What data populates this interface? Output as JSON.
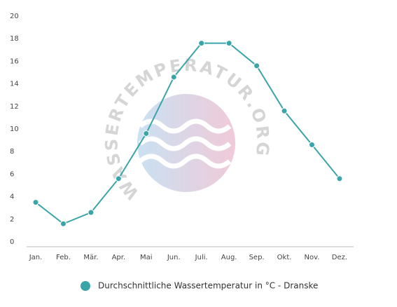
{
  "chart_data": {
    "type": "line",
    "categories": [
      "Jan.",
      "Feb.",
      "Mär.",
      "Apr.",
      "Mai",
      "Jun.",
      "Juli.",
      "Aug.",
      "Sep.",
      "Okt.",
      "Nov.",
      "Dez."
    ],
    "series": [
      {
        "name": "Durchschnittliche Wassertemperatur in °C - Dranske",
        "color": "#3aa5a9",
        "values": [
          3.5,
          1.6,
          2.6,
          5.6,
          9.6,
          14.6,
          17.6,
          17.6,
          15.6,
          11.6,
          8.6,
          5.6
        ]
      }
    ],
    "ylim": [
      0,
      20
    ],
    "yticks": [
      0,
      2,
      4,
      6,
      8,
      10,
      12,
      14,
      16,
      18,
      20
    ],
    "watermark": "WASSERTEMPERATUR.ORG"
  }
}
